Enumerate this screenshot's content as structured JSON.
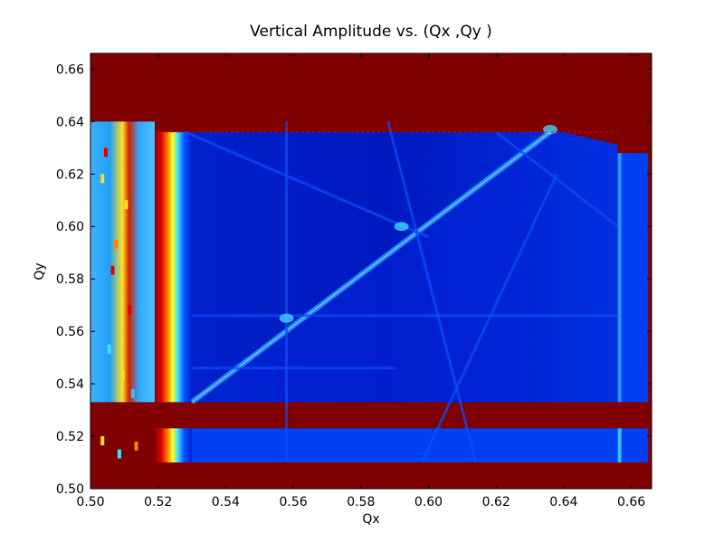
{
  "chart_data": {
    "type": "heatmap",
    "title": "Vertical Amplitude vs. (Qx ,Qy )",
    "xlabel": "Qx",
    "ylabel": "Qy",
    "xlim": [
      0.5,
      0.666
    ],
    "ylim": [
      0.5,
      0.666
    ],
    "x_ticks": [
      "0.50",
      "0.52",
      "0.54",
      "0.56",
      "0.58",
      "0.60",
      "0.62",
      "0.64",
      "0.66"
    ],
    "y_ticks": [
      "0.50",
      "0.52",
      "0.54",
      "0.56",
      "0.58",
      "0.60",
      "0.62",
      "0.64",
      "0.66"
    ],
    "colormap": "jet",
    "colors": {
      "background_high": "#800000",
      "deep_blue": "#0018c8",
      "mid_blue": "#0040f0",
      "cyan": "#40e0ff",
      "yellow": "#ffff20",
      "orange": "#ff8000",
      "red": "#e00000"
    },
    "regions": {
      "stable_core": {
        "qx": [
          0.525,
          0.656
        ],
        "qy": [
          0.533,
          0.636
        ]
      },
      "lower_strip": {
        "qx": [
          0.525,
          0.656
        ],
        "qy": [
          0.51,
          0.523
        ]
      },
      "left_band": {
        "qx": [
          0.5,
          0.519
        ],
        "qy": [
          0.533,
          0.64
        ]
      },
      "left_lower_band": {
        "qx": [
          0.5,
          0.519
        ],
        "qy": [
          0.51,
          0.523
        ]
      },
      "right_edge": {
        "qx": [
          0.656,
          0.665
        ],
        "qy": [
          0.533,
          0.628
        ]
      },
      "red_horizontal_band": {
        "qy": [
          0.523,
          0.533
        ]
      },
      "top_red_region": {
        "qy": [
          0.64,
          0.666
        ]
      }
    },
    "resonance_lines": [
      {
        "type": "diagonal",
        "from": [
          0.53,
          0.533
        ],
        "to": [
          0.636,
          0.636
        ]
      },
      {
        "type": "line",
        "from": [
          0.558,
          0.51
        ],
        "to": [
          0.558,
          0.64
        ]
      },
      {
        "type": "line",
        "from": [
          0.588,
          0.64
        ],
        "to": [
          0.614,
          0.51
        ]
      },
      {
        "type": "line",
        "from": [
          0.62,
          0.636
        ],
        "to": [
          0.656,
          0.6
        ]
      },
      {
        "type": "line",
        "from": [
          0.528,
          0.636
        ],
        "to": [
          0.6,
          0.596
        ]
      },
      {
        "type": "line",
        "from": [
          0.53,
          0.546
        ],
        "to": [
          0.59,
          0.546
        ]
      },
      {
        "type": "line",
        "from": [
          0.598,
          0.51
        ],
        "to": [
          0.638,
          0.62
        ]
      },
      {
        "type": "line",
        "from": [
          0.53,
          0.566
        ],
        "to": [
          0.656,
          0.566
        ]
      }
    ]
  }
}
